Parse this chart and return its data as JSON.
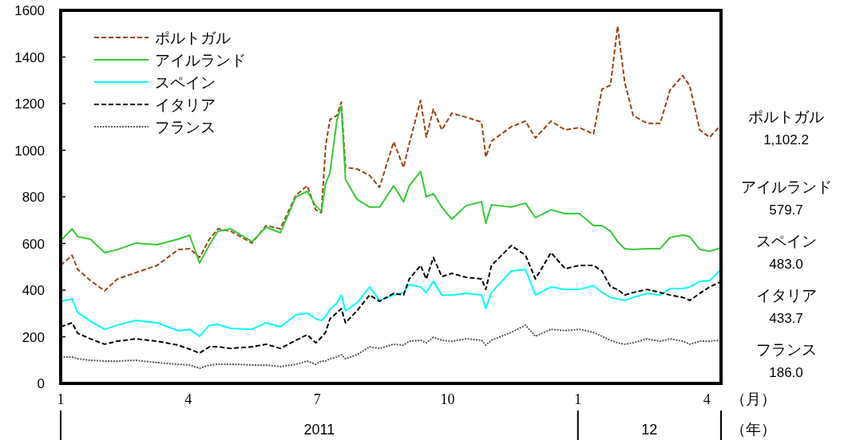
{
  "chart_data": {
    "type": "line",
    "xlabel": "（月）",
    "annotations": [
      "2011",
      "12",
      "（年）",
      "1,102.2",
      "579.7",
      "483.0",
      "433.7",
      "186.0"
    ],
    "legend": "top left",
    "xlim": [
      "2011-01-01",
      "2012-04-11"
    ],
    "xticks": [
      {
        "value": "2011-01-01",
        "label": "1"
      },
      {
        "value": "2011-04-01",
        "label": "4"
      },
      {
        "value": "2011-07-01",
        "label": "7"
      },
      {
        "value": "2011-10-01",
        "label": "10"
      },
      {
        "value": "2012-01-01",
        "label": "1"
      },
      {
        "value": "2012-04-01",
        "label": "4"
      }
    ],
    "ylim": [
      0,
      1600
    ],
    "yticks": [
      0,
      200,
      400,
      600,
      800,
      1000,
      1200,
      1400,
      1600
    ],
    "x": [
      "2011-01-01",
      "2011-01-09",
      "2011-01-13",
      "2011-01-22",
      "2011-02-01",
      "2011-02-10",
      "2011-02-23",
      "2011-03-10",
      "2011-03-25",
      "2011-04-02",
      "2011-04-09",
      "2011-04-16",
      "2011-04-22",
      "2011-05-01",
      "2011-05-16",
      "2011-05-26",
      "2011-06-05",
      "2011-06-16",
      "2011-06-24",
      "2011-06-30",
      "2011-07-04",
      "2011-07-07",
      "2011-07-10",
      "2011-07-15",
      "2011-07-18",
      "2011-07-21",
      "2011-07-29",
      "2011-08-07",
      "2011-08-14",
      "2011-08-24",
      "2011-08-31",
      "2011-09-04",
      "2011-09-12",
      "2011-09-16",
      "2011-09-21",
      "2011-09-27",
      "2011-10-04",
      "2011-10-14",
      "2011-10-25",
      "2011-10-28",
      "2011-11-01",
      "2011-11-15",
      "2011-11-25",
      "2011-12-02",
      "2011-12-13",
      "2011-12-23",
      "2012-01-02",
      "2012-01-12",
      "2012-01-18",
      "2012-01-24",
      "2012-01-29",
      "2012-02-03",
      "2012-02-09",
      "2012-02-19",
      "2012-02-28",
      "2012-03-06",
      "2012-03-15",
      "2012-03-20",
      "2012-03-27",
      "2012-04-03",
      "2012-04-10"
    ],
    "series": [
      {
        "name": "ポルトガル",
        "color": "#a0400f",
        "line_style": "dashed",
        "values": [
          506,
          550,
          489,
          441,
          397,
          448,
          475,
          506,
          574,
          578,
          540,
          619,
          663,
          653,
          602,
          677,
          663,
          807,
          848,
          745,
          732,
          1019,
          1132,
          1149,
          1207,
          926,
          920,
          892,
          841,
          1036,
          926,
          1029,
          1214,
          1056,
          1176,
          1087,
          1159,
          1142,
          1121,
          971,
          1039,
          1101,
          1125,
          1053,
          1125,
          1087,
          1097,
          1070,
          1262,
          1279,
          1532,
          1292,
          1149,
          1115,
          1115,
          1258,
          1320,
          1275,
          1087,
          1056,
          1102.2
        ]
      },
      {
        "name": "アイルランド",
        "color": "#33cc33",
        "line_style": "solid",
        "values": [
          612,
          663,
          629,
          619,
          561,
          574,
          602,
          595,
          619,
          636,
          516,
          595,
          653,
          663,
          608,
          670,
          646,
          800,
          824,
          762,
          738,
          858,
          903,
          1132,
          1190,
          875,
          790,
          756,
          756,
          848,
          779,
          848,
          909,
          800,
          814,
          756,
          704,
          762,
          779,
          687,
          766,
          756,
          773,
          711,
          745,
          728,
          728,
          677,
          677,
          653,
          608,
          578,
          574,
          578,
          578,
          626,
          636,
          629,
          574,
          567,
          579.7
        ]
      },
      {
        "name": "スペイン",
        "color": "#00ffff",
        "line_style": "solid",
        "values": [
          352,
          362,
          304,
          267,
          232,
          250,
          270,
          260,
          226,
          232,
          202,
          250,
          253,
          236,
          232,
          260,
          243,
          294,
          301,
          277,
          270,
          287,
          318,
          345,
          379,
          311,
          345,
          414,
          356,
          379,
          390,
          424,
          414,
          390,
          438,
          379,
          379,
          386,
          379,
          321,
          390,
          482,
          489,
          379,
          414,
          403,
          403,
          420,
          390,
          369,
          362,
          356,
          369,
          386,
          379,
          407,
          407,
          414,
          438,
          441,
          483
        ]
      },
      {
        "name": "イタリア",
        "color": "#000000",
        "line_style": "dashed",
        "values": [
          243,
          260,
          215,
          191,
          168,
          181,
          191,
          181,
          164,
          147,
          130,
          157,
          157,
          150,
          157,
          168,
          150,
          185,
          209,
          174,
          198,
          219,
          277,
          304,
          321,
          260,
          311,
          379,
          352,
          386,
          379,
          448,
          506,
          448,
          540,
          458,
          472,
          455,
          448,
          403,
          506,
          591,
          550,
          448,
          561,
          492,
          506,
          506,
          482,
          414,
          403,
          379,
          390,
          403,
          390,
          379,
          369,
          356,
          386,
          414,
          433.7
        ]
      },
      {
        "name": "フランス",
        "color": "#555555",
        "line_style": "dotted",
        "values": [
          113,
          113,
          106,
          99,
          96,
          96,
          99,
          89,
          82,
          79,
          65,
          79,
          82,
          82,
          79,
          79,
          72,
          82,
          96,
          82,
          96,
          96,
          106,
          113,
          123,
          106,
          123,
          157,
          150,
          168,
          164,
          181,
          185,
          174,
          198,
          185,
          181,
          191,
          185,
          164,
          185,
          219,
          250,
          202,
          232,
          226,
          232,
          219,
          202,
          185,
          174,
          168,
          174,
          191,
          181,
          191,
          181,
          168,
          181,
          181,
          186
        ]
      }
    ]
  }
}
